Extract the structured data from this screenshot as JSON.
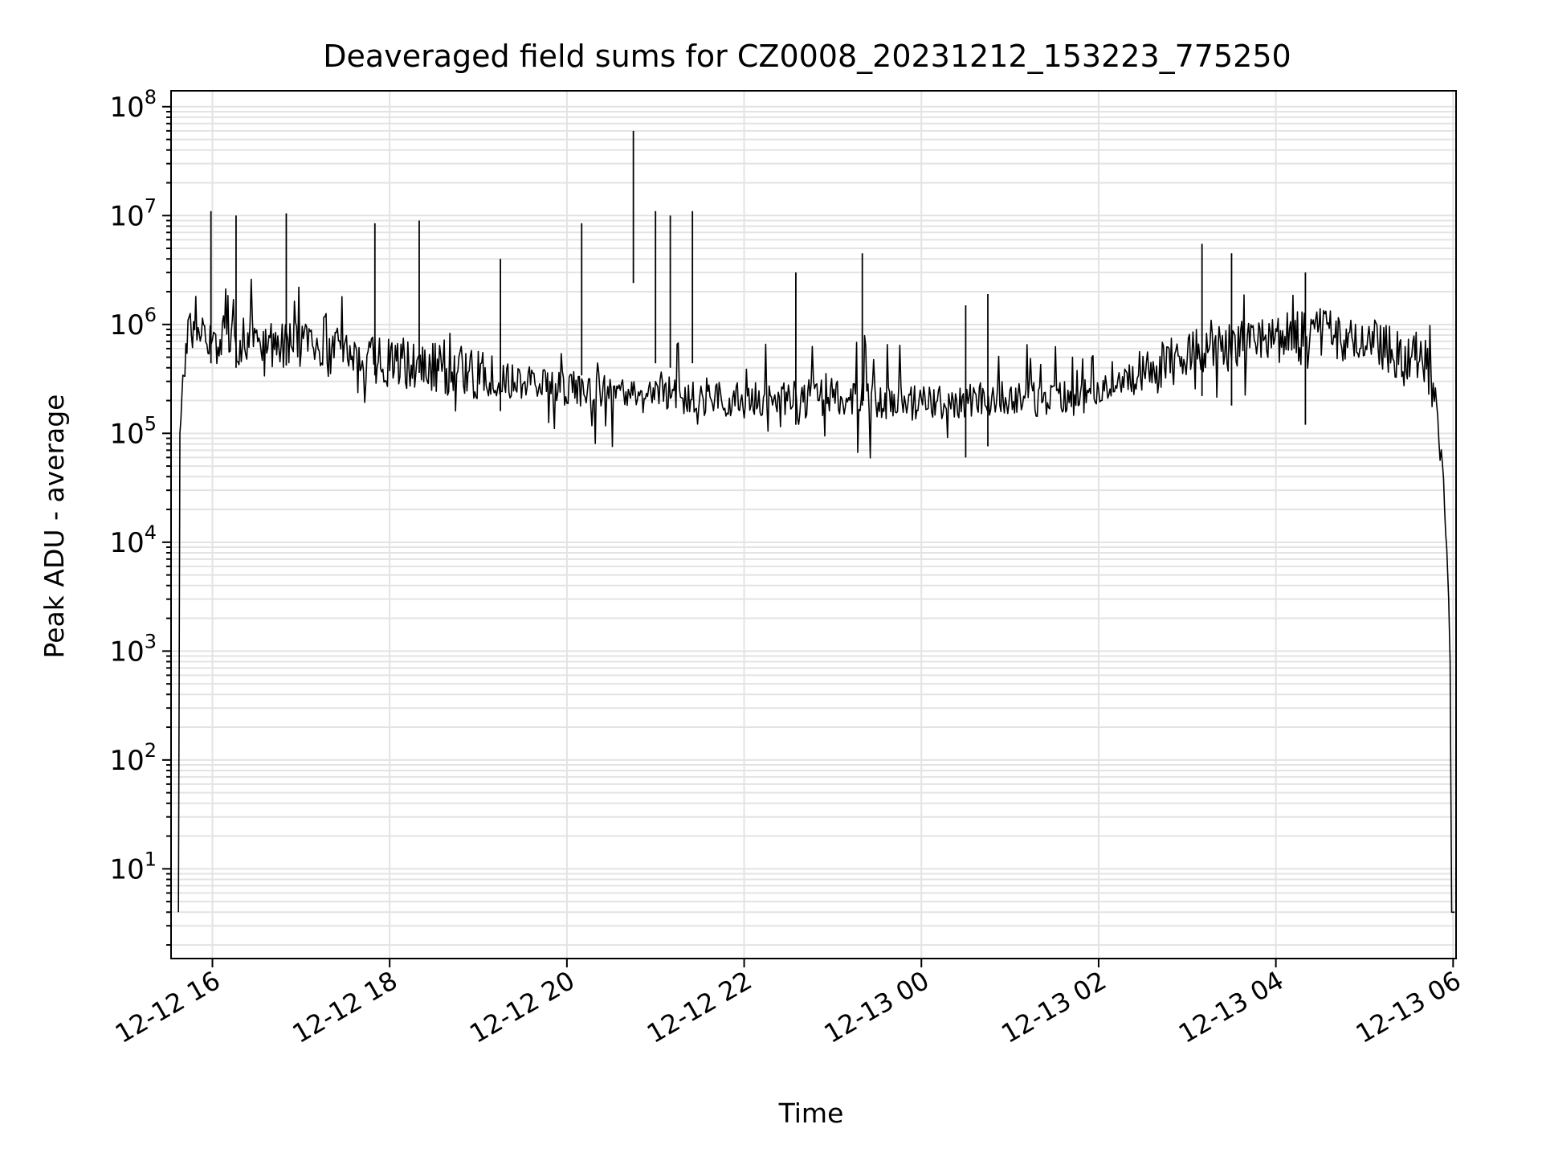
{
  "chart_data": {
    "type": "line",
    "title": "Deaveraged field sums for CZ0008_20231212_153223_775250",
    "xlabel": "Time",
    "ylabel": "Peak ADU - average",
    "y_scale": "log",
    "ylim": [
      1.5,
      140000000
    ],
    "xlim": [
      "2023-12-12 15:32",
      "2023-12-13 06:02"
    ],
    "x_ticks": [
      "2023-12-12 16:00",
      "2023-12-12 18:00",
      "2023-12-12 20:00",
      "2023-12-12 22:00",
      "2023-12-13 00:00",
      "2023-12-13 02:00",
      "2023-12-13 04:00",
      "2023-12-13 06:00"
    ],
    "x_tick_labels": [
      "12-12 16",
      "12-12 18",
      "12-12 20",
      "12-12 22",
      "12-13 00",
      "12-13 02",
      "12-13 04",
      "12-13 06"
    ],
    "y_ticks": [
      10,
      100,
      1000,
      10000,
      100000,
      1000000,
      10000000,
      100000000
    ],
    "y_tick_labels": [
      {
        "base": "10",
        "exp": "1"
      },
      {
        "base": "10",
        "exp": "2"
      },
      {
        "base": "10",
        "exp": "3"
      },
      {
        "base": "10",
        "exp": "4"
      },
      {
        "base": "10",
        "exp": "5"
      },
      {
        "base": "10",
        "exp": "6"
      },
      {
        "base": "10",
        "exp": "7"
      },
      {
        "base": "10",
        "exp": "8"
      }
    ],
    "grid": true,
    "series": [
      {
        "color": "#000000",
        "x": [
          "2023-12-12 15:37",
          "2023-12-12 15:38",
          "2023-12-12 15:40",
          "2023-12-12 15:42",
          "2023-12-12 15:45",
          "2023-12-12 15:48",
          "2023-12-12 15:51",
          "2023-12-12 16:00",
          "2023-12-12 16:15",
          "2023-12-12 16:30",
          "2023-12-12 16:45",
          "2023-12-12 17:00",
          "2023-12-12 17:20",
          "2023-12-12 17:40",
          "2023-12-12 18:00",
          "2023-12-12 18:20",
          "2023-12-12 18:40",
          "2023-12-12 19:00",
          "2023-12-12 19:20",
          "2023-12-12 19:40",
          "2023-12-12 20:00",
          "2023-12-12 20:20",
          "2023-12-12 20:40",
          "2023-12-12 21:00",
          "2023-12-12 21:20",
          "2023-12-12 21:40",
          "2023-12-12 22:00",
          "2023-12-12 22:30",
          "2023-12-12 23:00",
          "2023-12-12 23:30",
          "2023-12-13 00:00",
          "2023-12-13 00:30",
          "2023-12-13 01:00",
          "2023-12-13 01:30",
          "2023-12-13 02:00",
          "2023-12-13 02:30",
          "2023-12-13 03:00",
          "2023-12-13 03:30",
          "2023-12-13 04:00",
          "2023-12-13 04:30",
          "2023-12-13 05:00",
          "2023-12-13 05:20",
          "2023-12-13 05:35",
          "2023-12-13 05:42",
          "2023-12-13 05:48",
          "2023-12-13 05:52",
          "2023-12-13 05:55",
          "2023-12-13 05:57",
          "2023-12-13 05:58",
          "2023-12-13 05:59",
          "2023-12-13 06:01"
        ],
        "y": [
          4,
          100000,
          250000,
          500000,
          900000,
          1200000,
          1000000,
          800000,
          700000,
          750000,
          650000,
          600000,
          550000,
          500000,
          450000,
          420000,
          380000,
          330000,
          300000,
          280000,
          260000,
          250000,
          230000,
          220000,
          210000,
          200000,
          200000,
          210000,
          220000,
          200000,
          190000,
          200000,
          210000,
          200000,
          230000,
          350000,
          500000,
          650000,
          750000,
          850000,
          700000,
          550000,
          500000,
          450000,
          250000,
          60000,
          15000,
          3000,
          800,
          4,
          4
        ]
      }
    ],
    "spikes": [
      {
        "x": "2023-12-12 15:59",
        "y": 11000000
      },
      {
        "x": "2023-12-12 16:16",
        "y": 10000000
      },
      {
        "x": "2023-12-12 16:50",
        "y": 10500000
      },
      {
        "x": "2023-12-12 17:50",
        "y": 8500000
      },
      {
        "x": "2023-12-12 18:20",
        "y": 9000000
      },
      {
        "x": "2023-12-12 19:15",
        "y": 4000000
      },
      {
        "x": "2023-12-12 20:10",
        "y": 8500000
      },
      {
        "x": "2023-12-12 20:45",
        "y": 60000000
      },
      {
        "x": "2023-12-12 21:00",
        "y": 11000000
      },
      {
        "x": "2023-12-12 21:10",
        "y": 10000000
      },
      {
        "x": "2023-12-12 21:25",
        "y": 11000000
      },
      {
        "x": "2023-12-12 22:35",
        "y": 3000000
      },
      {
        "x": "2023-12-12 23:20",
        "y": 4500000
      },
      {
        "x": "2023-12-13 00:30",
        "y": 1500000
      },
      {
        "x": "2023-12-13 00:45",
        "y": 1900000
      },
      {
        "x": "2023-12-13 03:10",
        "y": 5500000
      },
      {
        "x": "2023-12-13 03:30",
        "y": 4500000
      },
      {
        "x": "2023-12-13 04:20",
        "y": 3000000
      }
    ]
  }
}
